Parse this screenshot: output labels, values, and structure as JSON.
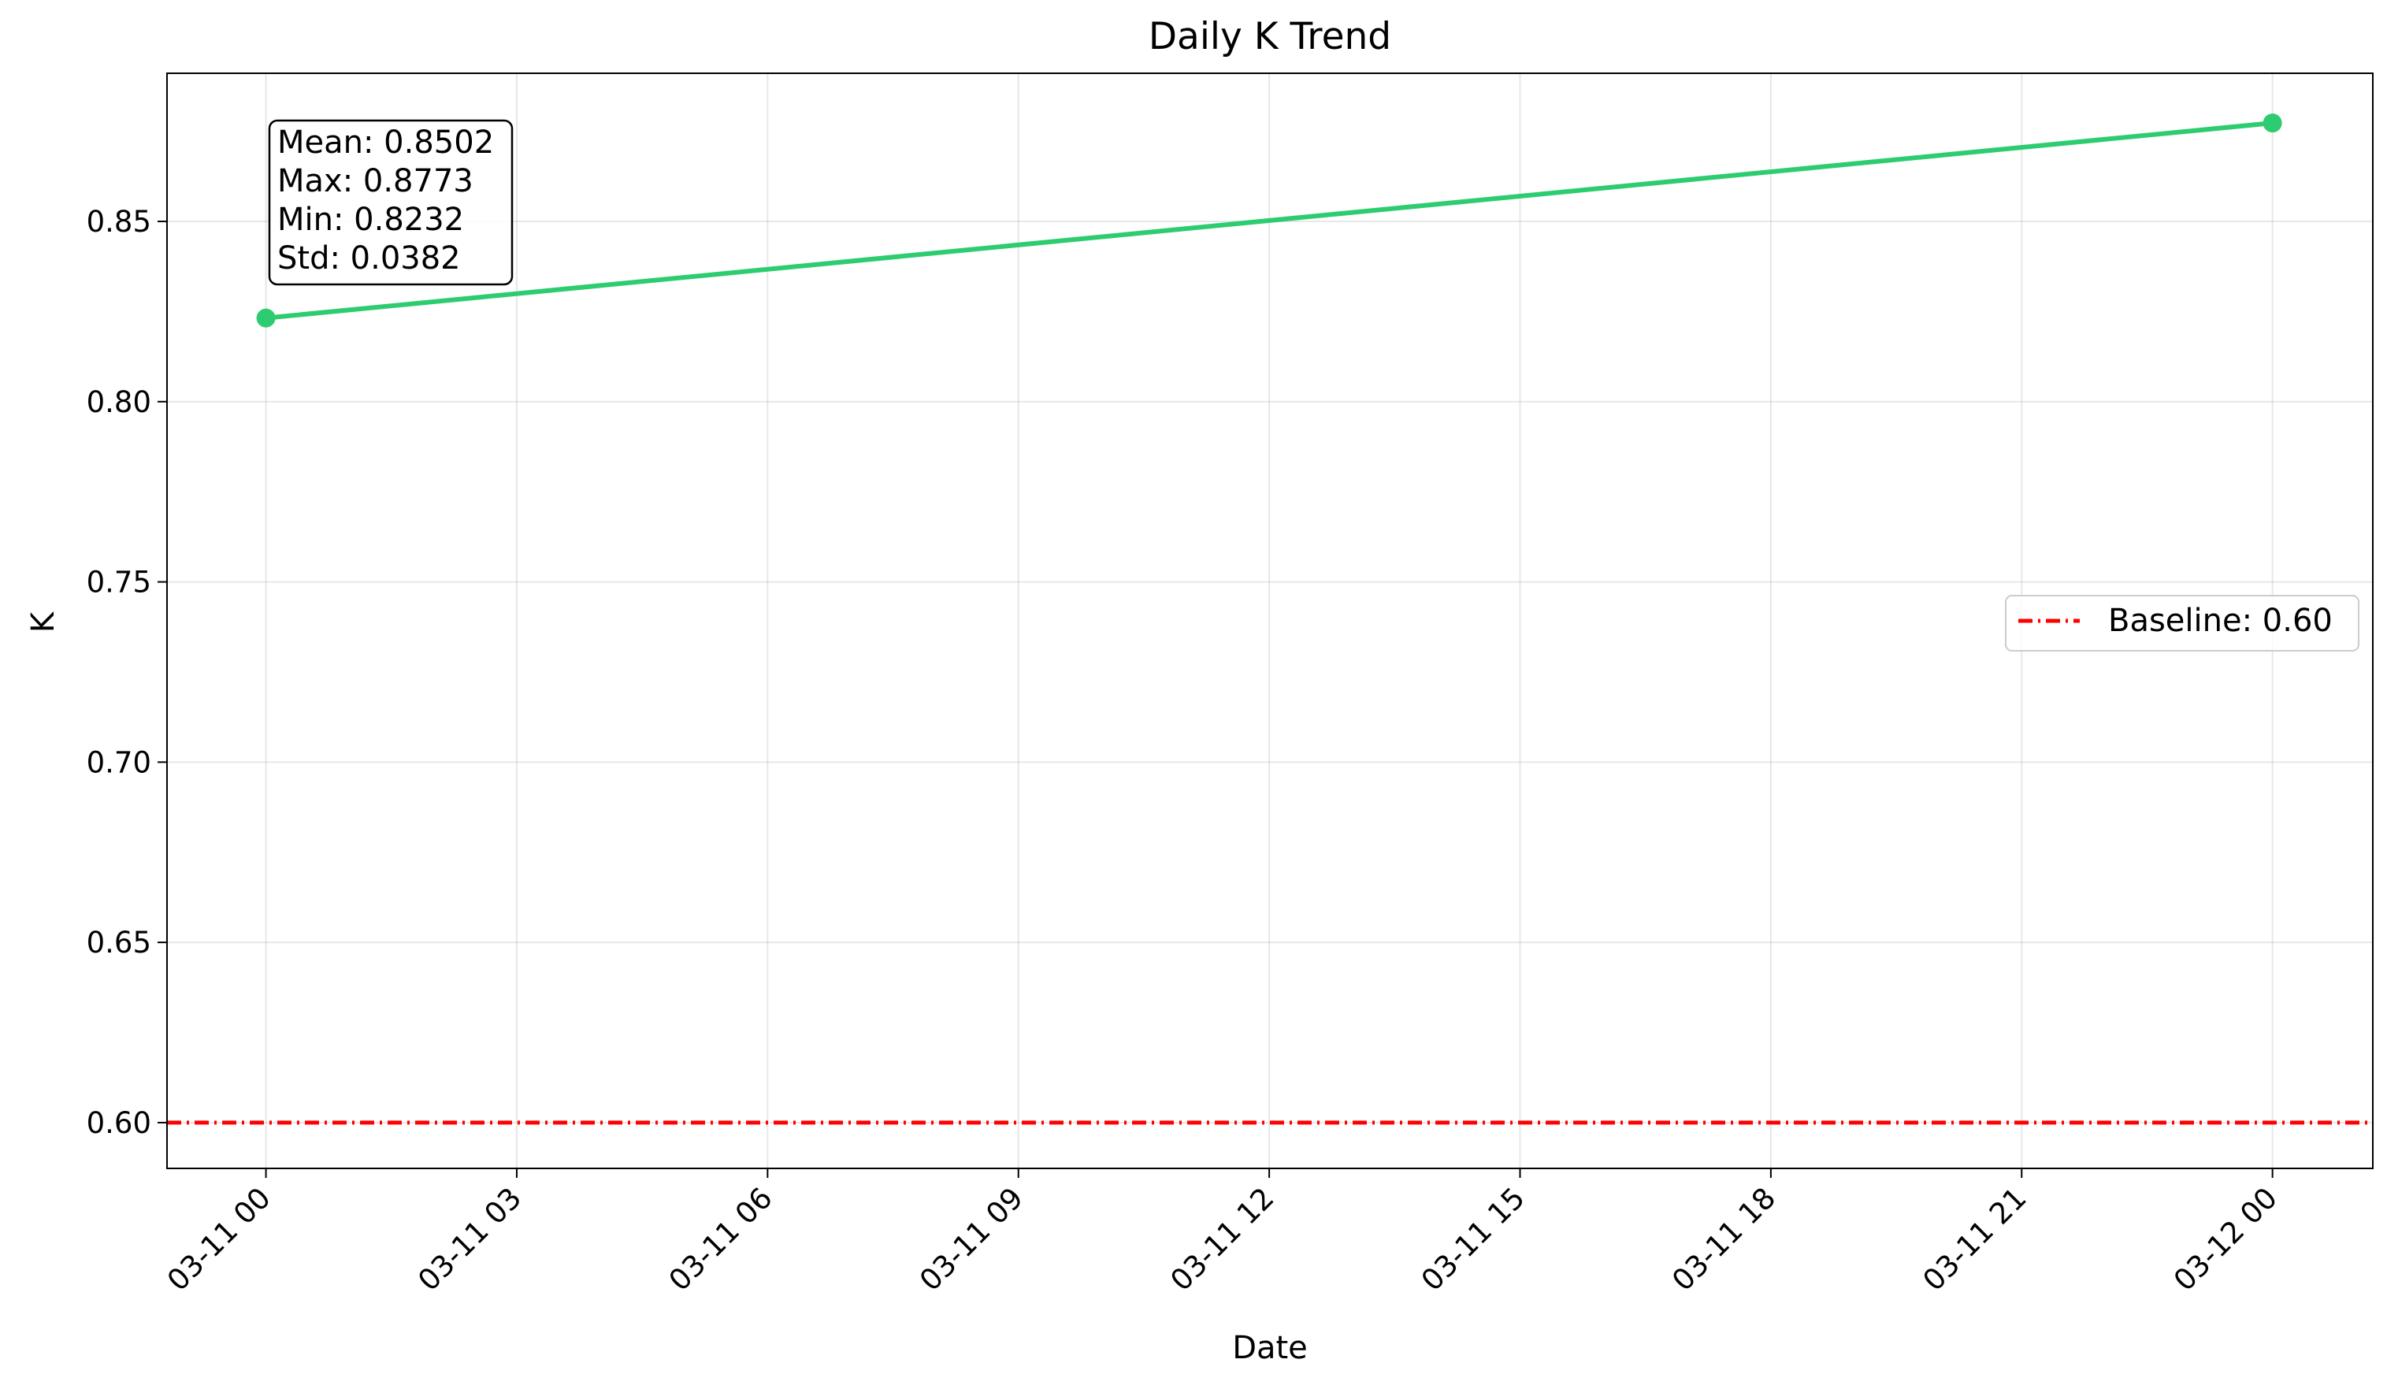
{
  "chart_data": {
    "type": "line",
    "title": "Daily K Trend",
    "xlabel": "Date",
    "ylabel": "K",
    "x_ticks": [
      "03-11 00",
      "03-11 03",
      "03-11 06",
      "03-11 09",
      "03-11 12",
      "03-11 15",
      "03-11 18",
      "03-11 21",
      "03-12 00"
    ],
    "y_ticks": [
      "0.60",
      "0.65",
      "0.70",
      "0.75",
      "0.80",
      "0.85"
    ],
    "xlim": [
      "03-10 22:49",
      "03-12 01:12"
    ],
    "ylim": [
      0.5873,
      0.8911
    ],
    "grid": true,
    "series": [
      {
        "x": [
          "03-11 00:00",
          "03-12 00:00"
        ],
        "y": [
          0.8232,
          0.8773
        ],
        "color": "#2ecc71",
        "marker": "circle"
      }
    ],
    "reference_lines": [
      {
        "name": "Baseline: 0.60",
        "y": 0.6,
        "color": "#ff0000",
        "style": "dash-dot"
      }
    ],
    "stats_box": {
      "lines": [
        "Mean: 0.8502",
        "Max: 0.8773",
        "Min: 0.8232",
        "Std: 0.0382"
      ]
    },
    "legend": {
      "placement": "center-right",
      "entries": [
        "Baseline: 0.60"
      ]
    }
  }
}
